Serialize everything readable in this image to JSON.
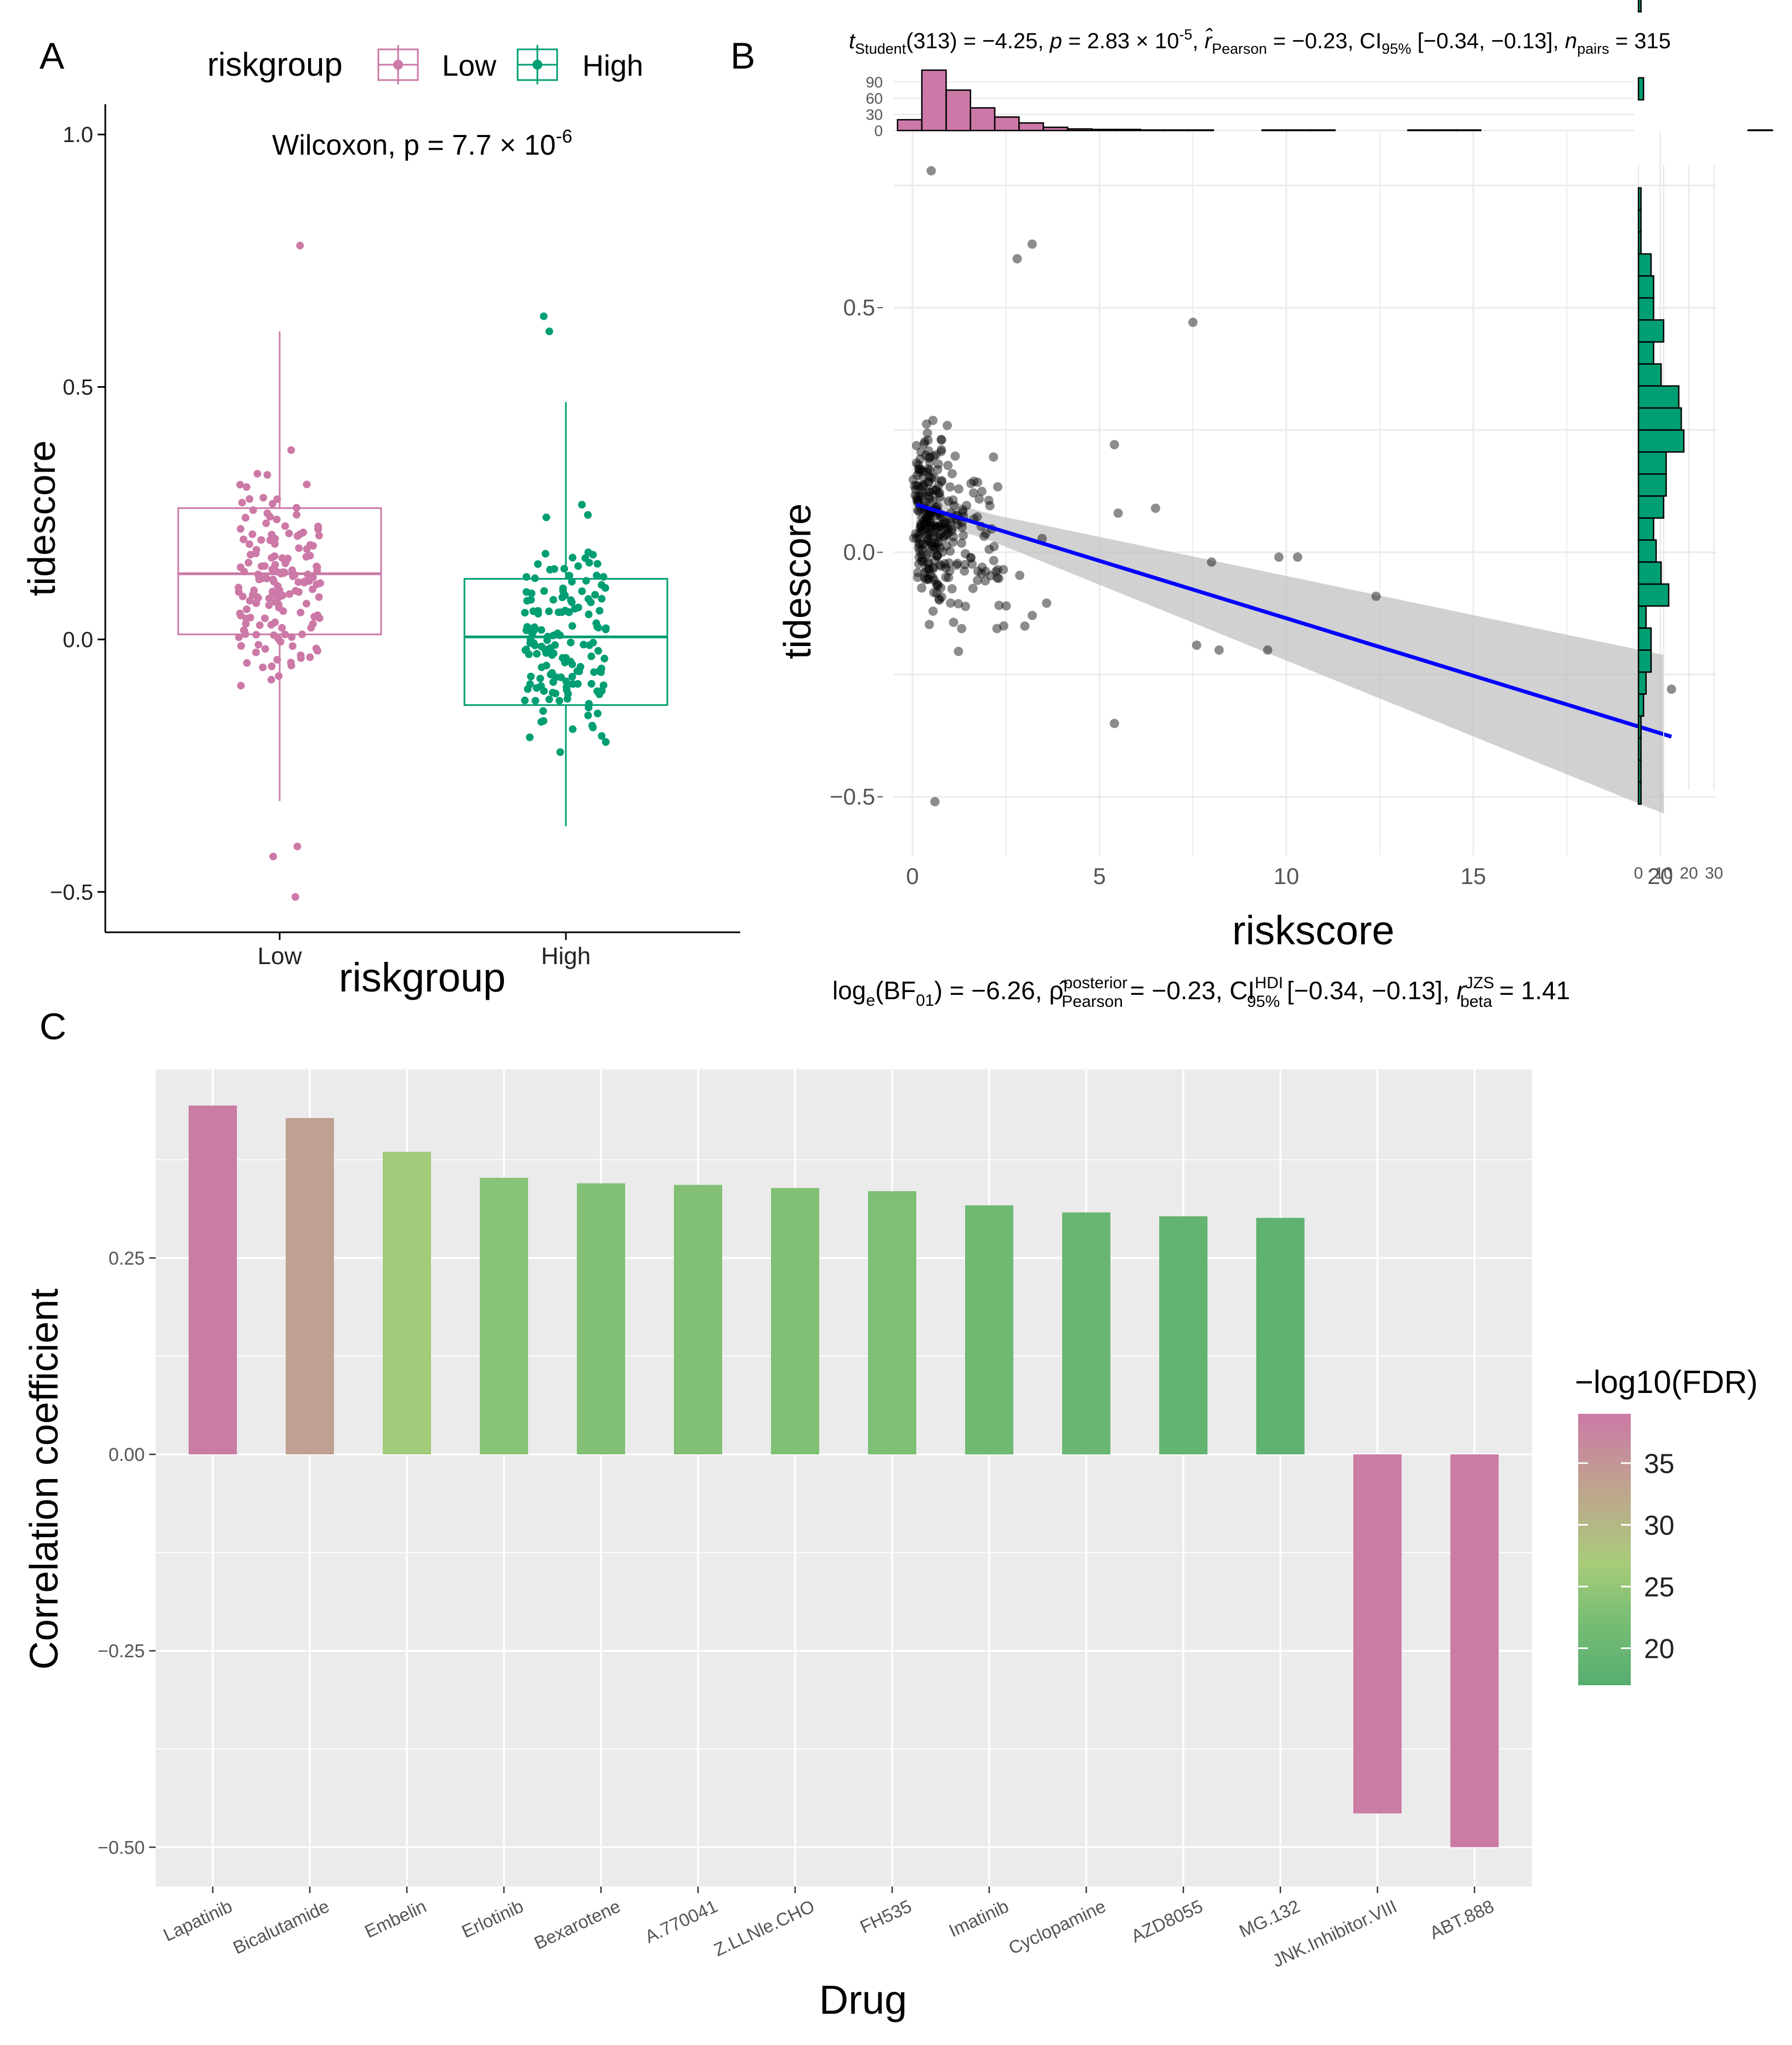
{
  "panels": {
    "a": "A",
    "b": "B",
    "c": "C"
  },
  "panel_a": {
    "legend_title": "riskgroup",
    "legend_items": [
      "Low",
      "High"
    ],
    "stat_prefix": "Wilcoxon, p = 7.7 × 10",
    "stat_exp": "-6"
  },
  "panel_b": {
    "stat_top": [
      "t",
      "Student",
      "(313) = −4.25, ",
      "p",
      " = 2.83 × 10",
      "-5",
      ", ",
      "r̂",
      "Pearson",
      " = −0.23, CI",
      "95%",
      " [−0.34, −0.13], ",
      "n",
      "pairs",
      " = 315"
    ],
    "stat_bottom": [
      "log",
      "e",
      "(BF",
      "01",
      ") = −6.26, ",
      "ρ̂",
      "posterior",
      "Pearson",
      " = −0.23, CI",
      "HDI",
      "95%",
      " [−0.34, −0.13], ",
      "r",
      "JZS",
      "beta",
      " = 1.41"
    ]
  },
  "panel_c": {
    "colorbar_title": "−log10(FDR)",
    "colorbar_ticks": [
      35,
      30,
      25,
      20
    ]
  },
  "colors": {
    "low": "#CC79A7",
    "high": "#009E73",
    "grey_panel": "#EBEBEB",
    "regression": "#0000FF"
  },
  "chart_data": [
    {
      "id": "A",
      "type": "box",
      "xlabel": "riskgroup",
      "ylabel": "tidescore",
      "categories": [
        "Low",
        "High"
      ],
      "ylim": [
        -0.58,
        1.06
      ],
      "yticks": [
        -0.5,
        0.0,
        0.5,
        1.0
      ],
      "ytick_labels": [
        "−0.5",
        "0.0",
        "0.5",
        "1.0"
      ],
      "boxes": [
        {
          "name": "Low",
          "q1": 0.01,
          "median": 0.13,
          "q3": 0.26,
          "whisker_low": -0.32,
          "whisker_high": 0.61,
          "outliers": [
            0.78,
            -0.41,
            -0.43,
            -0.51
          ],
          "n": 160
        },
        {
          "name": "High",
          "q1": -0.13,
          "median": 0.005,
          "q3": 0.12,
          "whisker_low": -0.37,
          "whisker_high": 0.47,
          "outliers": [
            0.64,
            0.61
          ],
          "n": 155
        }
      ]
    },
    {
      "id": "B",
      "type": "scatter",
      "xlabel": "riskscore",
      "ylabel": "tidescore",
      "xlim": [
        -0.5,
        21.5
      ],
      "ylim": [
        -0.62,
        0.86
      ],
      "xticks": [
        0,
        5,
        10,
        15,
        20
      ],
      "xtick_labels": [
        "0",
        "5",
        "10",
        "15",
        "20"
      ],
      "yticks": [
        -0.5,
        0.0,
        0.5
      ],
      "ytick_labels": [
        "−0.5",
        "0.0",
        "0.5"
      ],
      "regression": {
        "intercept": 0.1,
        "slope": -0.0235,
        "x": [
          0.1,
          20.3
        ]
      },
      "marked_points": [
        [
          0.5,
          0.78
        ],
        [
          3.2,
          0.63
        ],
        [
          2.8,
          0.6
        ],
        [
          7.5,
          0.47
        ],
        [
          5.4,
          0.22
        ],
        [
          5.5,
          0.08
        ],
        [
          6.5,
          0.09
        ],
        [
          8.0,
          -0.02
        ],
        [
          9.8,
          -0.01
        ],
        [
          10.3,
          -0.01
        ],
        [
          12.4,
          -0.09
        ],
        [
          8.2,
          -0.2
        ],
        [
          7.6,
          -0.19
        ],
        [
          9.5,
          -0.2
        ],
        [
          5.4,
          -0.35
        ],
        [
          20.3,
          -0.28
        ],
        [
          0.6,
          -0.51
        ]
      ],
      "top_histogram": {
        "yticks": [
          0,
          30,
          60,
          90
        ],
        "bin_width": 0.65,
        "bin_start": -0.4,
        "counts": [
          20,
          112,
          75,
          42,
          25,
          14,
          6,
          3,
          2,
          2,
          1,
          1,
          1,
          0,
          0,
          1,
          1,
          1,
          0,
          0,
          0,
          1,
          1,
          1,
          0,
          0,
          0,
          0,
          0,
          0,
          0,
          0,
          0,
          0,
          0,
          1
        ]
      },
      "right_histogram": {
        "xticks": [
          0,
          10,
          20,
          30
        ],
        "xtick_labels": [
          "0",
          "10",
          "20",
          "30"
        ],
        "bin_width": 0.045,
        "bin_start": -0.515,
        "counts": [
          1,
          1,
          1,
          1,
          2,
          3,
          5,
          5,
          3,
          12,
          9,
          7,
          6,
          10,
          11,
          11,
          18,
          17,
          16,
          9,
          6,
          10,
          6,
          6,
          5,
          1,
          1,
          1,
          0,
          0,
          0,
          0,
          2,
          0,
          0,
          0,
          1,
          1,
          1,
          1,
          1,
          1
        ]
      }
    },
    {
      "id": "C",
      "type": "bar",
      "xlabel": "Drug",
      "ylabel": "Correlation coefficient",
      "ylim": [
        -0.55,
        0.49
      ],
      "yticks": [
        -0.5,
        -0.25,
        0.0,
        0.25
      ],
      "ytick_labels": [
        "−0.50",
        "−0.25",
        "0.00",
        "0.25"
      ],
      "categories": [
        "Lapatinib",
        "Bicalutamide",
        "Embelin",
        "Erlotinib",
        "Bexarotene",
        "A.770041",
        "Z.LLNle.CHO",
        "FH535",
        "Imatinib",
        "Cyclopamine",
        "AZD8055",
        "MG.132",
        "JNK.Inhibitor.VIII",
        "ABT.888"
      ],
      "values": [
        0.444,
        0.428,
        0.385,
        0.352,
        0.345,
        0.343,
        0.339,
        0.335,
        0.317,
        0.308,
        0.303,
        0.301,
        -0.457,
        -0.5
      ],
      "neg_log10_fdr": [
        38.5,
        33.0,
        26.0,
        23.0,
        22.0,
        22.0,
        21.8,
        21.5,
        19.8,
        19.0,
        18.4,
        18.0,
        38.5,
        38.5
      ],
      "color_range": [
        17.0,
        39.0
      ]
    }
  ]
}
